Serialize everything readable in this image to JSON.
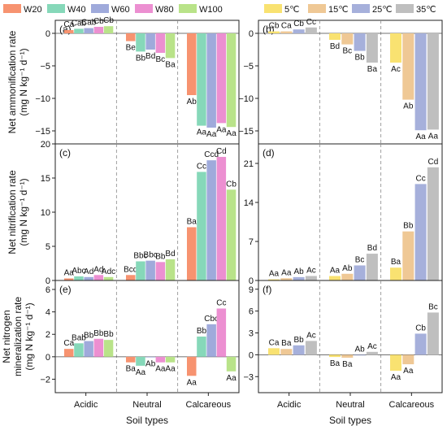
{
  "legend_left": [
    {
      "label": "W20",
      "color": "#F79370"
    },
    {
      "label": "W40",
      "color": "#86D8B9"
    },
    {
      "label": "W60",
      "color": "#9FAADB"
    },
    {
      "label": "W80",
      "color": "#EC8FD1"
    },
    {
      "label": "W100",
      "color": "#B9E389"
    }
  ],
  "legend_right": [
    {
      "label": "5℃",
      "color": "#F9E271"
    },
    {
      "label": "15℃",
      "color": "#EFC895"
    },
    {
      "label": "25℃",
      "color": "#A6B0DB"
    },
    {
      "label": "35℃",
      "color": "#BFBFBF"
    }
  ],
  "row_labels": [
    [
      "Net ammonification rate",
      "(mg N kg⁻¹ d⁻¹)"
    ],
    [
      "Net nitrification rate",
      "(mg N kg⁻¹ d⁻¹)"
    ],
    [
      "Net nitrogen",
      "mineralization rate",
      "(mg N kg⁻¹ d⁻¹)"
    ]
  ],
  "xlabel": "Soil types",
  "chart_data": [
    {
      "type": "bar",
      "panel": "(a)",
      "categories": [
        "Acidic",
        "Neutral",
        "Calcareous"
      ],
      "ylim": [
        -17,
        2
      ],
      "yticks": [
        -15,
        -10,
        -5,
        0
      ],
      "series": [
        {
          "name": "W20",
          "values": [
            0.5,
            -1.2,
            -9.5
          ],
          "labels": [
            "Ca",
            "Be",
            "Ab"
          ]
        },
        {
          "name": "W40",
          "values": [
            0.7,
            -2.8,
            -14.2
          ],
          "labels": [
            "Cab",
            "Bb",
            "Aa"
          ]
        },
        {
          "name": "W60",
          "values": [
            0.8,
            -2.5,
            -14.5
          ],
          "labels": [
            "Cab",
            "Bd",
            "Aa"
          ]
        },
        {
          "name": "W80",
          "values": [
            1.0,
            -3.0,
            -13.8
          ],
          "labels": [
            "Cb",
            "Bc",
            "Aa"
          ]
        },
        {
          "name": "W100",
          "values": [
            1.1,
            -3.8,
            -14.4
          ],
          "labels": [
            "Cb",
            "Ba",
            "Aa"
          ]
        }
      ]
    },
    {
      "type": "bar",
      "panel": "(b)",
      "categories": [
        "Acidic",
        "Neutral",
        "Calcareous"
      ],
      "ylim": [
        -17,
        2
      ],
      "yticks": [
        -15,
        -10,
        -5,
        0
      ],
      "series": [
        {
          "name": "5℃",
          "values": [
            0.3,
            -1.0,
            -4.5
          ],
          "labels": [
            "Cb",
            "Bd",
            "Ac"
          ]
        },
        {
          "name": "15℃",
          "values": [
            0.3,
            -1.7,
            -10.2
          ],
          "labels": [
            "Ca",
            "Bc",
            "Ab"
          ]
        },
        {
          "name": "25℃",
          "values": [
            0.6,
            -2.7,
            -14.9
          ],
          "labels": [
            "Cb",
            "Bb",
            "Aa"
          ]
        },
        {
          "name": "35℃",
          "values": [
            0.9,
            -4.5,
            -14.8
          ],
          "labels": [
            "Cc",
            "Ba",
            "Aa"
          ]
        }
      ]
    },
    {
      "type": "bar",
      "panel": "(c)",
      "categories": [
        "Acidic",
        "Neutral",
        "Calcareous"
      ],
      "ylim": [
        0,
        20
      ],
      "yticks": [
        0,
        5,
        10,
        15,
        20
      ],
      "series": [
        {
          "name": "W20",
          "values": [
            0.3,
            0.8,
            7.8
          ],
          "labels": [
            "Aa",
            "Bcd",
            "Ba"
          ]
        },
        {
          "name": "W40",
          "values": [
            0.6,
            2.8,
            15.9
          ],
          "labels": [
            "Abc",
            "Bbc",
            "Cc"
          ]
        },
        {
          "name": "W60",
          "values": [
            0.5,
            2.9,
            17.6
          ],
          "labels": [
            "Ad",
            "Bbc",
            "Ccd"
          ]
        },
        {
          "name": "W80",
          "values": [
            0.8,
            2.7,
            18.1
          ],
          "labels": [
            "Ad",
            "Bb",
            "Cd"
          ]
        },
        {
          "name": "W100",
          "values": [
            0.5,
            3.1,
            13.3
          ],
          "labels": [
            "Adc",
            "Bd",
            "Cb"
          ]
        }
      ]
    },
    {
      "type": "bar",
      "panel": "(d)",
      "categories": [
        "Acidic",
        "Neutral",
        "Calcareous"
      ],
      "ylim": [
        0,
        24.5
      ],
      "yticks": [
        0,
        7,
        14,
        21
      ],
      "series": [
        {
          "name": "5℃",
          "values": [
            0.2,
            0.8,
            2.3
          ],
          "labels": [
            "Aa",
            "Aa",
            "Ba"
          ]
        },
        {
          "name": "15℃",
          "values": [
            0.4,
            1.2,
            8.8
          ],
          "labels": [
            "Aa",
            "Ab",
            "Bb"
          ]
        },
        {
          "name": "25℃",
          "values": [
            0.6,
            2.7,
            17.3
          ],
          "labels": [
            "Ab",
            "Bc",
            "Cc"
          ]
        },
        {
          "name": "35℃",
          "values": [
            0.8,
            4.8,
            20.3
          ],
          "labels": [
            "Ac",
            "Bd",
            "Cd"
          ]
        }
      ]
    },
    {
      "type": "bar",
      "panel": "(e)",
      "categories": [
        "Acidic",
        "Neutral",
        "Calcareous"
      ],
      "ylim": [
        -3.2,
        6.8
      ],
      "yticks": [
        -2,
        0,
        2,
        4,
        6
      ],
      "series": [
        {
          "name": "W20",
          "values": [
            0.7,
            -0.5,
            -1.7
          ],
          "labels": [
            "Ca",
            "Ba",
            "Aa"
          ]
        },
        {
          "name": "W40",
          "values": [
            1.2,
            -0.8,
            1.8
          ],
          "labels": [
            "Bab",
            "Aa",
            "Bb"
          ]
        },
        {
          "name": "W60",
          "values": [
            1.4,
            -0.05,
            2.9
          ],
          "labels": [
            "Bb",
            "Ab",
            "Cbc"
          ]
        },
        {
          "name": "W80",
          "values": [
            1.6,
            -0.5,
            4.3
          ],
          "labels": [
            "Bb",
            "Aa",
            "Cc"
          ]
        },
        {
          "name": "W100",
          "values": [
            1.5,
            -0.5,
            -1.3
          ],
          "labels": [
            "Bb",
            "Aa",
            "Aa"
          ]
        }
      ]
    },
    {
      "type": "bar",
      "panel": "(f)",
      "categories": [
        "Acidic",
        "Neutral",
        "Calcareous"
      ],
      "ylim": [
        -5.2,
        10.2
      ],
      "yticks": [
        -3,
        0,
        3,
        6,
        9
      ],
      "series": [
        {
          "name": "5℃",
          "values": [
            0.9,
            -0.3,
            -2.2
          ],
          "labels": [
            "Ca",
            "Ba",
            "Aa"
          ]
        },
        {
          "name": "15℃",
          "values": [
            0.8,
            -0.4,
            -1.3
          ],
          "labels": [
            "Ba",
            "Ba",
            "Aa"
          ]
        },
        {
          "name": "25℃",
          "values": [
            1.3,
            0.0,
            2.9
          ],
          "labels": [
            "Bb",
            "Ab",
            "Cb"
          ]
        },
        {
          "name": "35℃",
          "values": [
            1.9,
            0.4,
            5.8
          ],
          "labels": [
            "Ac",
            "Ac",
            "Bc"
          ]
        }
      ]
    }
  ]
}
